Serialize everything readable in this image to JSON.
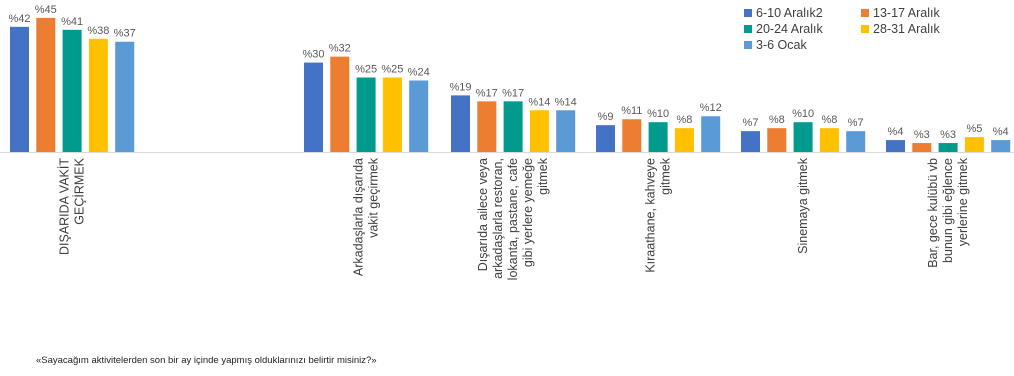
{
  "chart_data": {
    "type": "bar",
    "title": "",
    "xlabel": "",
    "ylabel": "",
    "value_prefix": "%",
    "ylim": [
      0,
      45
    ],
    "grid": false,
    "legend_position": "top-right",
    "categories": [
      [
        "DIŞARIDA VAKİT",
        "GEÇİRMEK"
      ],
      [
        "Arkadaşlarla dışarıda",
        "vakit geçirmek"
      ],
      [
        "Dışarıda ailece veya",
        "arkadaşlarla restoran,",
        "lokanta, pastane, cafe",
        "gibi yerlere yemeğe",
        "gitmek"
      ],
      [
        "Kıraathane, kahveye",
        "gitmek"
      ],
      [
        "Sinemaya gitmek"
      ],
      [
        "Bar, gece kulübü vb",
        "bunun gibi eğlence",
        "yerlerine gitmek"
      ]
    ],
    "series": [
      {
        "name": "6-10 Aralık2",
        "color": "#4472C4",
        "values": [
          42,
          30,
          19,
          9,
          7,
          4
        ]
      },
      {
        "name": "13-17 Aralık",
        "color": "#ED7D31",
        "values": [
          45,
          32,
          17,
          11,
          8,
          3
        ]
      },
      {
        "name": "20-24 Aralık",
        "color": "#009B8D",
        "values": [
          41,
          25,
          17,
          10,
          10,
          3
        ]
      },
      {
        "name": "28-31 Aralık",
        "color": "#FFC000",
        "values": [
          38,
          25,
          14,
          8,
          8,
          5
        ]
      },
      {
        "name": "3-6 Ocak",
        "color": "#5B9BD5",
        "values": [
          37,
          24,
          14,
          12,
          7,
          4
        ]
      }
    ]
  },
  "footnote": "«Sayacağım aktivitelerden son bir ay içinde yapmış olduklarınızı belirtir misiniz?»"
}
